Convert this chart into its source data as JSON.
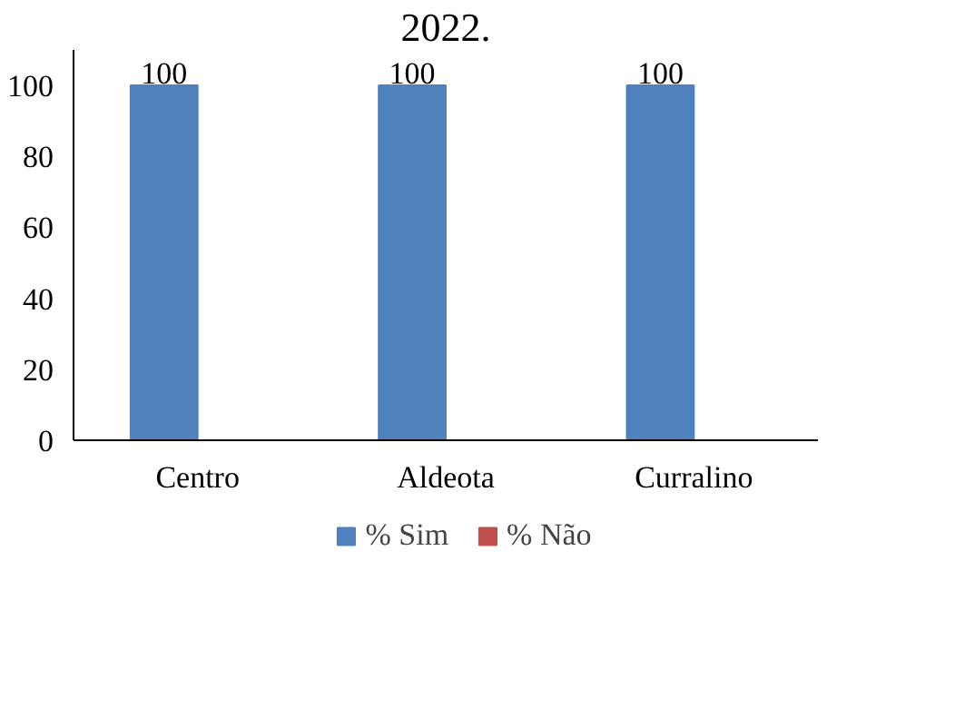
{
  "chart_data": {
    "type": "bar",
    "title": "2022.",
    "categories": [
      "Centro",
      "Aldeota",
      "Curralino"
    ],
    "series": [
      {
        "name": "% Sim",
        "color": "#4f81bd",
        "values": [
          100,
          100,
          100
        ],
        "value_labels": [
          "100",
          "100",
          "100"
        ]
      },
      {
        "name": "% Não",
        "color": "#c0504d",
        "values": [
          0,
          0,
          0
        ]
      }
    ],
    "ylim": [
      0,
      100
    ],
    "yticks": [
      0,
      20,
      40,
      60,
      80,
      100
    ],
    "grid": false,
    "legend": "bottom"
  }
}
